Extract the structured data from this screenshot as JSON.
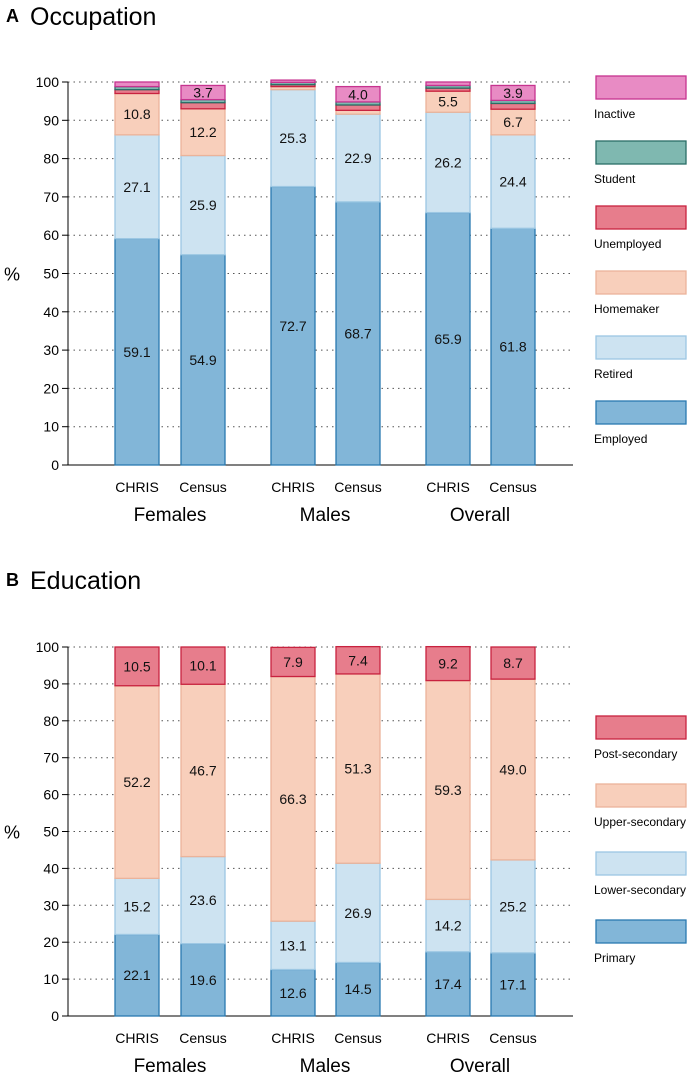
{
  "chart_data": [
    {
      "type": "bar",
      "panel_letter": "A",
      "title": "Occupation",
      "ylabel": "%",
      "ylim": [
        0,
        100
      ],
      "yticks": [
        0,
        10,
        20,
        30,
        40,
        50,
        60,
        70,
        80,
        90,
        100
      ],
      "grid": true,
      "categories": [
        "CHRIS",
        "Census",
        "CHRIS",
        "Census",
        "CHRIS",
        "Census"
      ],
      "groups": [
        "Females",
        "Males",
        "Overall"
      ],
      "series": [
        {
          "name": "Employed",
          "color": "#82b6d8",
          "edge": "#2a7ab0",
          "values": [
            59.1,
            54.9,
            72.7,
            68.7,
            65.9,
            61.8
          ],
          "labels": [
            "59.1",
            "54.9",
            "72.7",
            "68.7",
            "65.9",
            "61.8"
          ]
        },
        {
          "name": "Retired",
          "color": "#cde3f1",
          "edge": "#9cc7e3",
          "values": [
            27.1,
            25.9,
            25.3,
            22.9,
            26.2,
            24.4
          ],
          "labels": [
            "27.1",
            "25.9",
            "25.3",
            "22.9",
            "26.2",
            "24.4"
          ]
        },
        {
          "name": "Homemaker",
          "color": "#f8cfbb",
          "edge": "#ebb39a",
          "values": [
            10.8,
            12.2,
            0.8,
            1.0,
            5.5,
            6.7
          ],
          "labels": [
            "10.8",
            "12.2",
            "",
            "",
            "5.5",
            "6.7"
          ]
        },
        {
          "name": "Unemployed",
          "color": "#e77d8c",
          "edge": "#c8223f",
          "values": [
            1.0,
            1.6,
            0.5,
            1.4,
            0.8,
            1.5
          ],
          "labels": [
            "",
            "",
            "",
            "",
            "",
            ""
          ]
        },
        {
          "name": "Student",
          "color": "#7fb8b0",
          "edge": "#2a6e66",
          "values": [
            0.8,
            0.8,
            0.6,
            0.8,
            0.7,
            0.8
          ],
          "labels": [
            "",
            "",
            "",
            "",
            "",
            ""
          ]
        },
        {
          "name": "Inactive",
          "color": "#e88bc4",
          "edge": "#c6338f",
          "values": [
            1.2,
            3.7,
            0.6,
            4.0,
            0.9,
            3.9
          ],
          "labels": [
            "",
            "3.7",
            "",
            "4.0",
            "",
            "3.9"
          ]
        }
      ]
    },
    {
      "type": "bar",
      "panel_letter": "B",
      "title": "Education",
      "ylabel": "%",
      "ylim": [
        0,
        100
      ],
      "yticks": [
        0,
        10,
        20,
        30,
        40,
        50,
        60,
        70,
        80,
        90,
        100
      ],
      "grid": true,
      "categories": [
        "CHRIS",
        "Census",
        "CHRIS",
        "Census",
        "CHRIS",
        "Census"
      ],
      "groups": [
        "Females",
        "Males",
        "Overall"
      ],
      "series": [
        {
          "name": "Primary",
          "color": "#82b6d8",
          "edge": "#2a7ab0",
          "values": [
            22.1,
            19.6,
            12.6,
            14.5,
            17.4,
            17.1
          ],
          "labels": [
            "22.1",
            "19.6",
            "12.6",
            "14.5",
            "17.4",
            "17.1"
          ]
        },
        {
          "name": "Lower-secondary",
          "color": "#cde3f1",
          "edge": "#9cc7e3",
          "values": [
            15.2,
            23.6,
            13.1,
            26.9,
            14.2,
            25.2
          ],
          "labels": [
            "15.2",
            "23.6",
            "13.1",
            "26.9",
            "14.2",
            "25.2"
          ]
        },
        {
          "name": "Upper-secondary",
          "color": "#f8cfbb",
          "edge": "#ebb39a",
          "values": [
            52.2,
            46.7,
            66.3,
            51.3,
            59.3,
            49.0
          ],
          "labels": [
            "52.2",
            "46.7",
            "66.3",
            "51.3",
            "59.3",
            "49.0"
          ]
        },
        {
          "name": "Post-secondary",
          "color": "#e77d8c",
          "edge": "#c8223f",
          "values": [
            10.5,
            10.1,
            7.9,
            7.4,
            9.2,
            8.7
          ],
          "labels": [
            "10.5",
            "10.1",
            "7.9",
            "7.4",
            "9.2",
            "8.7"
          ]
        }
      ]
    }
  ]
}
